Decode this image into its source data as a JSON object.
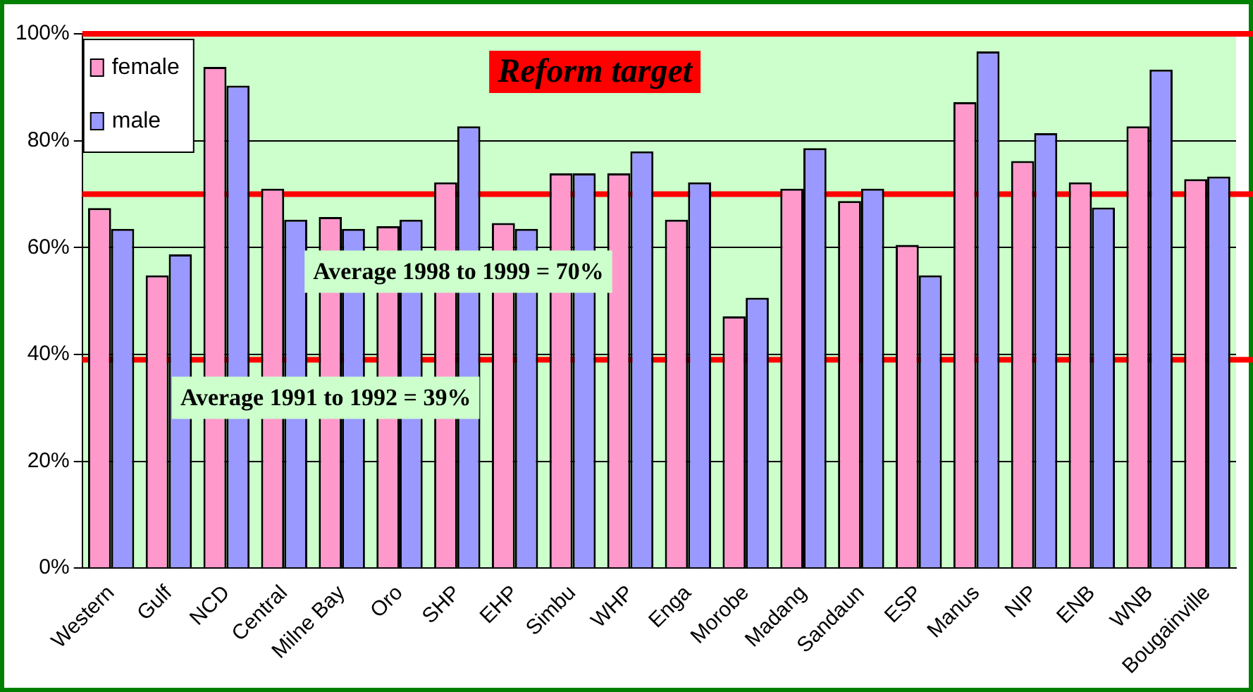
{
  "chart_data": {
    "type": "bar",
    "categories": [
      "Western",
      "Gulf",
      "NCD",
      "Central",
      "Milne Bay",
      "Oro",
      "SHP",
      "EHP",
      "Simbu",
      "WHP",
      "Enga",
      "Morobe",
      "Madang",
      "Sandaun",
      "ESP",
      "Manus",
      "NIP",
      "ENB",
      "WNB",
      "Bougainville"
    ],
    "series": [
      {
        "name": "female",
        "color": "#ff99cc",
        "values": [
          67.4,
          54.8,
          93.8,
          71,
          65.7,
          64,
          72.2,
          64.6,
          73.9,
          73.9,
          65.2,
          47.1,
          71,
          68.7,
          60.5,
          87.2,
          76.2,
          72.2,
          82.7,
          72.8
        ]
      },
      {
        "name": "male",
        "color": "#9999ff",
        "values": [
          63.5,
          58.7,
          90.3,
          65.2,
          63.5,
          65.2,
          82.7,
          63.5,
          73.9,
          78,
          72.2,
          50.6,
          78.6,
          71,
          54.8,
          96.7,
          81.4,
          67.5,
          93.3,
          73.3
        ]
      }
    ],
    "ylim": [
      0,
      100
    ],
    "yticks": [
      {
        "value": 0,
        "label": "0%"
      },
      {
        "value": 20,
        "label": "20%"
      },
      {
        "value": 40,
        "label": "40%"
      },
      {
        "value": 60,
        "label": "60%"
      },
      {
        "value": 80,
        "label": "80%"
      },
      {
        "value": 100,
        "label": "100%"
      }
    ],
    "grid": "y",
    "legend": "top left",
    "ref_lines": [
      {
        "axis": "y",
        "value": 100,
        "label": "Reform target",
        "color": "#ff0000"
      },
      {
        "axis": "y",
        "value": 70,
        "label": "Average 1998 to 1999 = 70%",
        "color": "#ff0000"
      },
      {
        "axis": "y",
        "value": 39,
        "label": "Average 1991 to 1992 = 39%",
        "color": "#ff0000"
      }
    ]
  }
}
